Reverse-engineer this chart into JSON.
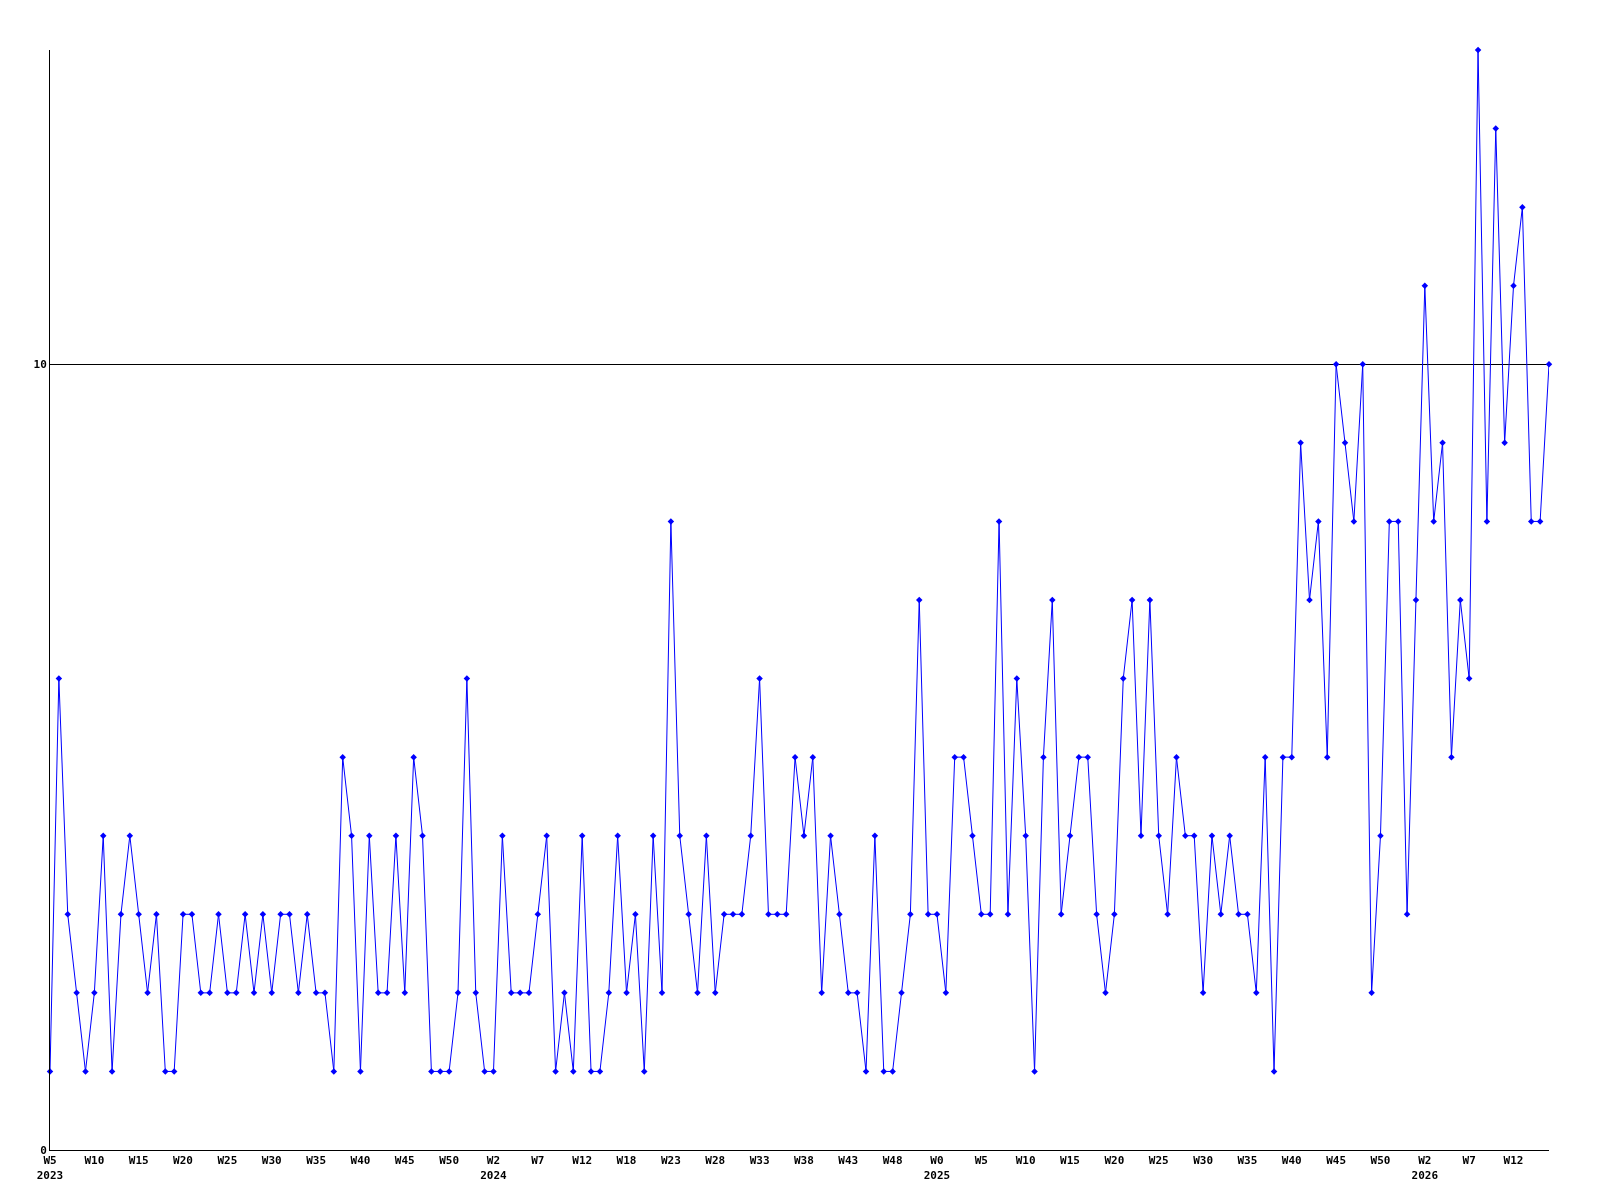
{
  "chart_data": {
    "type": "line",
    "categories": [
      "W5\n2023",
      null,
      null,
      null,
      null,
      "W10",
      null,
      null,
      null,
      null,
      "W15",
      null,
      null,
      null,
      null,
      "W20",
      null,
      null,
      null,
      null,
      "W25",
      null,
      null,
      null,
      null,
      "W30",
      null,
      null,
      null,
      null,
      "W35",
      null,
      null,
      null,
      null,
      "W40",
      null,
      null,
      null,
      null,
      "W45",
      null,
      null,
      null,
      null,
      "W50",
      null,
      null,
      null,
      null,
      "W2\n2024",
      null,
      null,
      null,
      null,
      "W7",
      null,
      null,
      null,
      null,
      "W12",
      null,
      null,
      null,
      null,
      "W18",
      null,
      null,
      null,
      null,
      "W23",
      null,
      null,
      null,
      null,
      "W28",
      null,
      null,
      null,
      null,
      "W33",
      null,
      null,
      null,
      null,
      "W38",
      null,
      null,
      null,
      null,
      "W43",
      null,
      null,
      null,
      null,
      "W48",
      null,
      null,
      null,
      null,
      "W0\n2025",
      null,
      null,
      null,
      null,
      "W5",
      null,
      null,
      null,
      null,
      "W10",
      null,
      null,
      null,
      null,
      "W15",
      null,
      null,
      null,
      null,
      "W20",
      null,
      null,
      null,
      null,
      "W25",
      null,
      null,
      null,
      null,
      "W30",
      null,
      null,
      null,
      null,
      "W35",
      null,
      null,
      null,
      null,
      "W40",
      null,
      null,
      null,
      null,
      "W45",
      null,
      null,
      null,
      null,
      "W50",
      null,
      null,
      null,
      null,
      "W2\n2026",
      null,
      null,
      null,
      null,
      "W7",
      null,
      null,
      null,
      null,
      "W12",
      null,
      null,
      null,
      null
    ],
    "series": [
      {
        "color": "#0000ff",
        "values": [
          1,
          6,
          3,
          2,
          1,
          2,
          4,
          1,
          3,
          4,
          3,
          2,
          3,
          1,
          1,
          3,
          3,
          2,
          2,
          3,
          2,
          2,
          3,
          2,
          3,
          2,
          3,
          3,
          2,
          3,
          2,
          2,
          1,
          5,
          4,
          1,
          4,
          2,
          2,
          4,
          2,
          5,
          4,
          1,
          1,
          1,
          2,
          6,
          2,
          1,
          1,
          4,
          2,
          2,
          2,
          3,
          4,
          1,
          2,
          1,
          4,
          1,
          1,
          2,
          4,
          2,
          3,
          1,
          4,
          2,
          8,
          4,
          3,
          2,
          4,
          2,
          3,
          3,
          3,
          4,
          6,
          3,
          3,
          3,
          5,
          4,
          5,
          2,
          4,
          3,
          2,
          2,
          1,
          4,
          1,
          1,
          2,
          3,
          7,
          3,
          3,
          2,
          5,
          5,
          4,
          3,
          3,
          8,
          3,
          6,
          4,
          1,
          5,
          7,
          3,
          4,
          5,
          5,
          3,
          2,
          3,
          6,
          7,
          4,
          7,
          4,
          3,
          5,
          4,
          4,
          2,
          4,
          3,
          4,
          3,
          3,
          2,
          5,
          1,
          5,
          5,
          9,
          7,
          8,
          5,
          10,
          9,
          8,
          10,
          2,
          4,
          8,
          8,
          3,
          7,
          11,
          8,
          9,
          5,
          7,
          6,
          14,
          8,
          13,
          9,
          11,
          12,
          8,
          8,
          10
        ]
      }
    ],
    "ylim": [
      0,
      14
    ],
    "yticks": [
      0,
      10
    ],
    "grid": "y",
    "legend": false,
    "marker": "diamond",
    "line_style": "solid"
  }
}
